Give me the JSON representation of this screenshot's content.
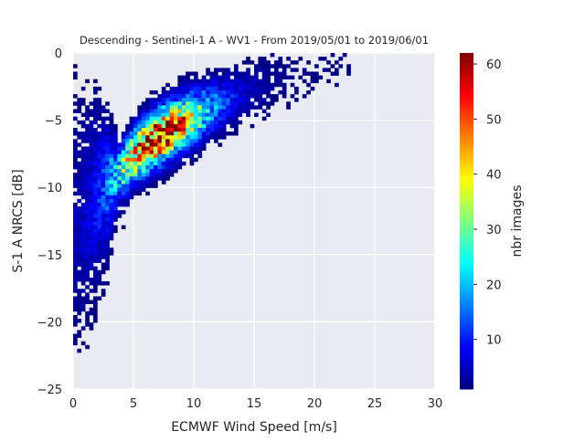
{
  "chart_data": {
    "type": "heatmap",
    "title": "Descending - Sentinel-1 A - WV1 - From 2019/05/01 to 2019/06/01",
    "xlabel": "ECMWF Wind Speed [m/s]",
    "ylabel": "S-1 A NRCS [dB]",
    "xlim": [
      0,
      30
    ],
    "ylim": [
      -25,
      0
    ],
    "xticks": [
      0,
      5,
      10,
      15,
      20,
      25,
      30
    ],
    "yticks": [
      0,
      -5,
      -10,
      -15,
      -20,
      -25
    ],
    "x_tick_labels": [
      "0",
      "5",
      "10",
      "15",
      "20",
      "25",
      "30"
    ],
    "y_tick_labels": [
      "0",
      "−5",
      "−10",
      "−15",
      "−20",
      "−25"
    ],
    "grid": true,
    "colormap": "jet",
    "colorbar": {
      "label": "nbr images",
      "range": [
        1,
        62
      ],
      "ticks": [
        10,
        20,
        30,
        40,
        50,
        60
      ],
      "tick_labels": [
        "10",
        "20",
        "30",
        "40",
        "50",
        "60"
      ]
    },
    "density_ridge": {
      "description_of_values": "approximate peak NRCS [dB] and count vs wind speed",
      "x": [
        0.5,
        1.5,
        2.5,
        3.5,
        4.5,
        5.5,
        6.5,
        7.5,
        8.5,
        9.5,
        10.5,
        11.5,
        12.5,
        13.5,
        14.5,
        15.5,
        17,
        19,
        21
      ],
      "y": [
        -11.5,
        -10.8,
        -10.0,
        -9.1,
        -8.2,
        -7.3,
        -6.6,
        -6.0,
        -5.5,
        -5.0,
        -4.6,
        -4.1,
        -3.7,
        -3.3,
        -2.9,
        -2.6,
        -2.2,
        -1.6,
        -1.0
      ],
      "peak_count": [
        3,
        6,
        12,
        22,
        35,
        48,
        58,
        60,
        50,
        40,
        28,
        18,
        12,
        8,
        5,
        3,
        2,
        1,
        1
      ]
    },
    "peak_max": 62
  },
  "colors": {
    "plot_background": "#eaeaf2",
    "grid": "#ffffff",
    "text": "#262626"
  }
}
